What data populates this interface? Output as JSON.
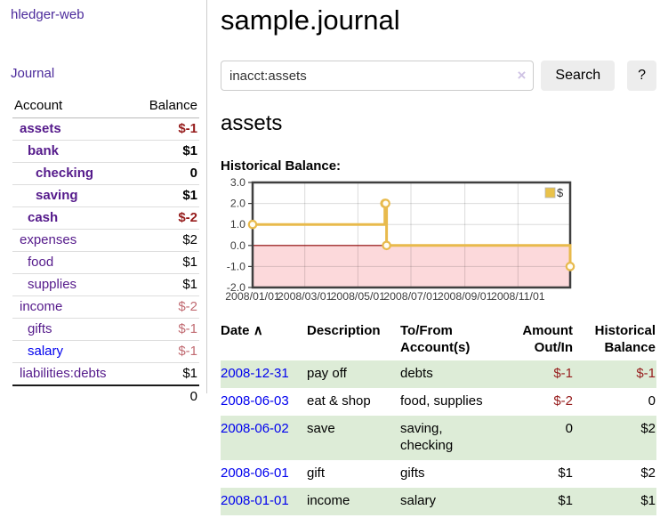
{
  "colors": {
    "nav_purple": "#4b2a9b",
    "link_purple": "#551a8b",
    "link_blue": "#0000ee",
    "negative_strong": "#961c1c",
    "negative_muted": "#c16b72",
    "row_green": "#ddecd7",
    "chart_line": "#e8ba4c",
    "chart_negative_region": "#fcd9db",
    "chart_zero_line": "#8b0000",
    "legend_swatch": "#e9c24a"
  },
  "sidebar": {
    "brand": "hledger-web",
    "journal_link": "Journal",
    "accounts_header": {
      "account": "Account",
      "balance": "Balance"
    },
    "accounts": [
      {
        "name": "assets",
        "level": 1,
        "bold": true,
        "balance": "$-1",
        "balance_tone": "negative-strong"
      },
      {
        "name": "bank",
        "level": 2,
        "bold": true,
        "balance": "$1",
        "balance_tone": "normal"
      },
      {
        "name": "checking",
        "level": 3,
        "bold": true,
        "balance": "0",
        "balance_tone": "normal"
      },
      {
        "name": "saving",
        "level": 3,
        "bold": true,
        "balance": "$1",
        "balance_tone": "normal"
      },
      {
        "name": "cash",
        "level": 2,
        "bold": true,
        "balance": "$-2",
        "balance_tone": "negative-strong"
      },
      {
        "name": "expenses",
        "level": 1,
        "bold": false,
        "balance": "$2",
        "balance_tone": "normal"
      },
      {
        "name": "food",
        "level": 2,
        "bold": false,
        "balance": "$1",
        "balance_tone": "normal"
      },
      {
        "name": "supplies",
        "level": 2,
        "bold": false,
        "balance": "$1",
        "balance_tone": "normal"
      },
      {
        "name": "income",
        "level": 1,
        "bold": false,
        "balance": "$-2",
        "balance_tone": "negative-muted"
      },
      {
        "name": "gifts",
        "level": 2,
        "bold": false,
        "balance": "$-1",
        "balance_tone": "negative-muted"
      },
      {
        "name": "salary",
        "level": 2,
        "bold": false,
        "balance": "$-1",
        "balance_tone": "negative-muted",
        "link_color": "#0000ee"
      },
      {
        "name": "liabilities:debts",
        "level": 1,
        "bold": false,
        "balance": "$1",
        "balance_tone": "normal"
      }
    ],
    "total": "0"
  },
  "main": {
    "title": "sample.journal",
    "search": {
      "value": "inacct:assets",
      "clear_icon": "×",
      "button_label": "Search",
      "help_label": "?"
    },
    "account_heading": "assets",
    "chart_label": "Historical Balance:"
  },
  "chart_data": {
    "type": "line",
    "title": "Historical Balance",
    "step": true,
    "xlim": [
      "2008/01/01",
      "2008/12/31"
    ],
    "ylim": [
      -2,
      3
    ],
    "x_ticks": [
      "2008/01/01",
      "2008/03/01",
      "2008/05/01",
      "2008/07/01",
      "2008/09/01",
      "2008/11/01"
    ],
    "y_ticks": [
      3.0,
      2.0,
      1.0,
      0.0,
      -1.0,
      -2.0
    ],
    "grid": true,
    "legend": {
      "label": "$",
      "position": "top-right"
    },
    "series": [
      {
        "name": "$",
        "points": [
          [
            "2008/01/01",
            1
          ],
          [
            "2008/06/01",
            2
          ],
          [
            "2008/06/02",
            2
          ],
          [
            "2008/06/03",
            0
          ],
          [
            "2008/12/31",
            -1
          ]
        ]
      }
    ]
  },
  "transactions": {
    "headers": {
      "date": "Date",
      "sort_icon": "∧",
      "description": "Description",
      "tofrom": "To/From Account(s)",
      "amount": "Amount Out/In",
      "balance": "Historical Balance"
    },
    "rows": [
      {
        "date": "2008-12-31",
        "description": "pay off",
        "accounts": "debts",
        "amount": "$-1",
        "amount_negative": true,
        "balance": "$-1",
        "balance_negative": true
      },
      {
        "date": "2008-06-03",
        "description": "eat & shop",
        "accounts": "food, supplies",
        "amount": "$-2",
        "amount_negative": true,
        "balance": "0",
        "balance_negative": false
      },
      {
        "date": "2008-06-02",
        "description": "save",
        "accounts": "saving, checking",
        "amount": "0",
        "amount_negative": false,
        "balance": "$2",
        "balance_negative": false
      },
      {
        "date": "2008-06-01",
        "description": "gift",
        "accounts": "gifts",
        "amount": "$1",
        "amount_negative": false,
        "balance": "$2",
        "balance_negative": false
      },
      {
        "date": "2008-01-01",
        "description": "income",
        "accounts": "salary",
        "amount": "$1",
        "amount_negative": false,
        "balance": "$1",
        "balance_negative": false
      }
    ]
  }
}
